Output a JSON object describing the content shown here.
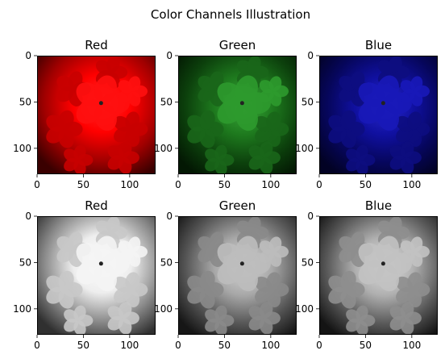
{
  "figure": {
    "title": "Color Channels Illustration"
  },
  "panels": [
    {
      "title": "Red",
      "mode": "color",
      "channel": "red",
      "tint": "#ff0000"
    },
    {
      "title": "Green",
      "mode": "color",
      "channel": "green",
      "tint": "#00ff00"
    },
    {
      "title": "Blue",
      "mode": "color",
      "channel": "blue",
      "tint": "#0000ff"
    },
    {
      "title": "Red",
      "mode": "gray",
      "channel": "red"
    },
    {
      "title": "Green",
      "mode": "gray",
      "channel": "green"
    },
    {
      "title": "Blue",
      "mode": "gray",
      "channel": "blue"
    }
  ],
  "axes": {
    "x_ticks": [
      "0",
      "50",
      "100"
    ],
    "y_ticks": [
      "0",
      "50",
      "100"
    ],
    "xlim": [
      0,
      128
    ],
    "ylim": [
      128,
      0
    ]
  }
}
